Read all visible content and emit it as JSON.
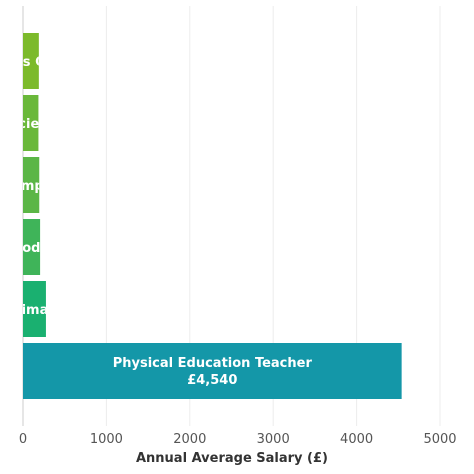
{
  "chart_data": {
    "type": "bar",
    "orientation": "horizontal",
    "xlabel": "Annual Average Salary (£)",
    "xlim": [
      0,
      5000
    ],
    "xticks": [
      0,
      1000,
      2000,
      3000,
      4000,
      5000
    ],
    "grid": true,
    "bars": [
      {
        "label": "Sports Coach",
        "value": 190,
        "value_label": "",
        "color": "#7cba2b"
      },
      {
        "label": "Sports Scientist and",
        "value": 185,
        "value_label": "",
        "color": "#6ab83a"
      },
      {
        "label": "Self-Employed",
        "value": 195,
        "value_label": "",
        "color": "#5bb646"
      },
      {
        "label": "Model",
        "value": 205,
        "value_label": "",
        "color": "#3fb459"
      },
      {
        "label": "Primary",
        "value": 275,
        "value_label": "",
        "color": "#1ab070"
      },
      {
        "label": "Physical Education Teacher",
        "value": 4540,
        "value_label": "£4,540",
        "color": "#1497a8"
      }
    ]
  }
}
